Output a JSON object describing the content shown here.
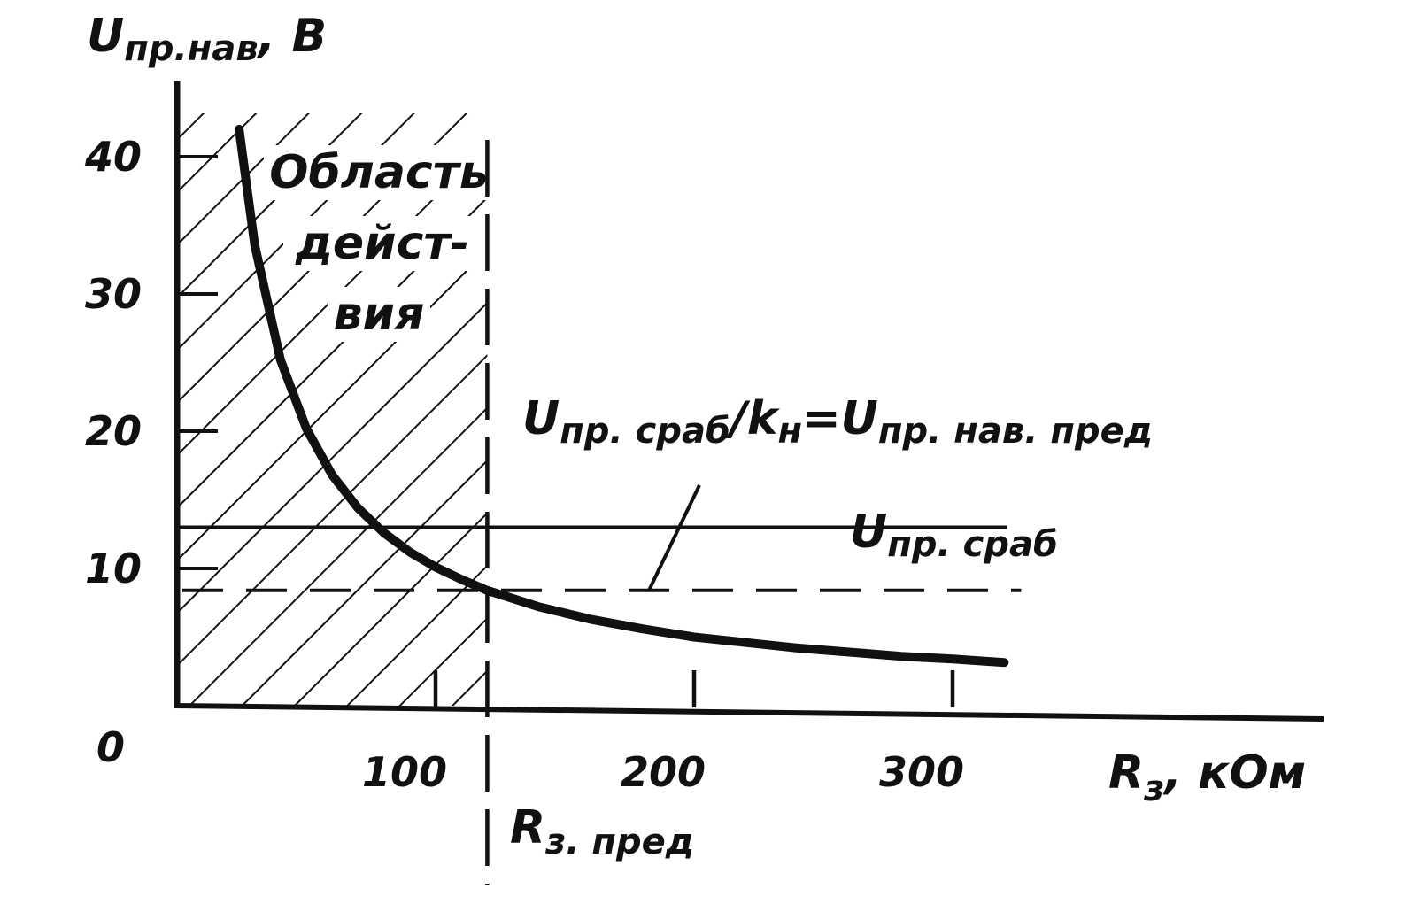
{
  "chart_data": {
    "type": "line",
    "title": "",
    "ylabel": "U",
    "ylabel_sub": "пр.нав",
    "ylabel_unit": ", В",
    "xlabel": "R",
    "xlabel_sub": "з",
    "xlabel_unit": ", кОм",
    "xlim": [
      0,
      380
    ],
    "ylim": [
      0,
      42
    ],
    "x_ticks": [
      "100",
      "200",
      "300"
    ],
    "y_ticks": [
      "10",
      "20",
      "30",
      "40"
    ],
    "origin_label": "0",
    "grid": false,
    "series": [
      {
        "x": [
          24,
          30,
          40,
          50,
          60,
          70,
          80,
          90,
          100,
          110,
          120,
          140,
          160,
          180,
          200,
          220,
          240,
          260,
          280,
          300,
          320
        ],
        "y": [
          42,
          33.6,
          25.2,
          20.2,
          16.8,
          14.4,
          12.6,
          11.2,
          10.1,
          9.2,
          8.4,
          7.2,
          6.3,
          5.6,
          5.0,
          4.6,
          4.2,
          3.9,
          3.6,
          3.4,
          3.15
        ],
        "style": "thick solid"
      }
    ],
    "reference_lines": [
      {
        "axis": "y",
        "value": 13,
        "x_to": 280,
        "style": "solid thin",
        "label": "U",
        "label_sub": "пр. сраб"
      },
      {
        "axis": "y",
        "value": 8.4,
        "x_to": 282,
        "style": "dashed",
        "label": "U",
        "label_sub": "пр. сраб",
        "label_sep": "/k",
        "label_sub2": "н",
        "label_eq": "=U",
        "label_sub3": "пр. нав. пред"
      },
      {
        "axis": "x",
        "value": 120,
        "style": "dashed",
        "label": "R",
        "label_sub": "з. пред"
      }
    ],
    "region": {
      "x": [
        0,
        120
      ],
      "y": [
        0,
        42
      ],
      "fill": "hatched",
      "label_lines": [
        "Область",
        "дейст-",
        "вия"
      ]
    }
  }
}
